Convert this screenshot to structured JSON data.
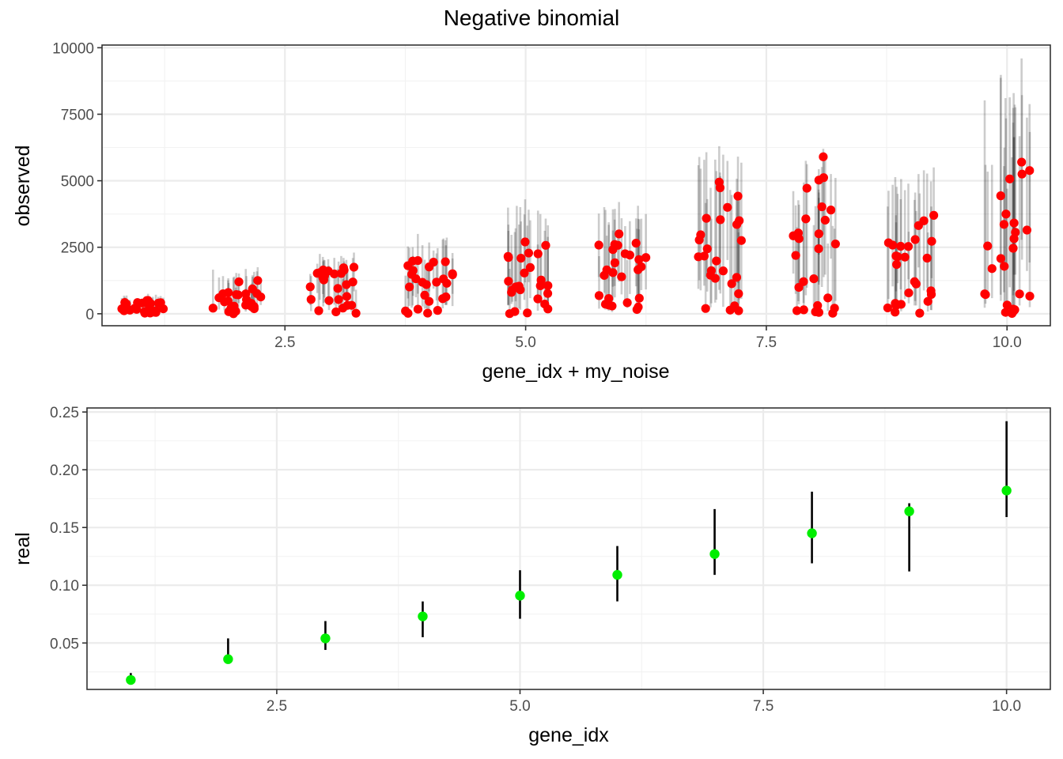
{
  "chart_data": [
    {
      "type": "scatter",
      "title": "Negative binomial",
      "xlabel": "gene_idx + my_noise",
      "ylabel": "observed",
      "xlim": [
        0.6,
        10.45
      ],
      "ylim": [
        -450,
        10100
      ],
      "x_ticks": [
        "2.5",
        "5.0",
        "7.5",
        "10.0"
      ],
      "x_tick_values": [
        2.5,
        5.0,
        7.5,
        10.0
      ],
      "y_ticks": [
        "0",
        "2500",
        "5000",
        "7500",
        "10000"
      ],
      "y_tick_values": [
        0,
        2500,
        5000,
        7500,
        10000
      ],
      "grid": true,
      "point_color": "#ff0000",
      "interval_color": "#000000",
      "groups": [
        {
          "gene_idx": 1,
          "point_max": 500,
          "interval_max": 750
        },
        {
          "gene_idx": 2,
          "point_max": 1250,
          "interval_max": 1750
        },
        {
          "gene_idx": 3,
          "point_max": 1750,
          "interval_max": 2300
        },
        {
          "gene_idx": 4,
          "point_max": 2000,
          "interval_max": 3000
        },
        {
          "gene_idx": 5,
          "point_max": 2700,
          "interval_max": 4300
        },
        {
          "gene_idx": 6,
          "point_max": 3000,
          "interval_max": 4200
        },
        {
          "gene_idx": 7,
          "point_max": 4950,
          "interval_max": 6300
        },
        {
          "gene_idx": 8,
          "point_max": 5900,
          "interval_max": 6200
        },
        {
          "gene_idx": 9,
          "point_max": 3700,
          "interval_max": 5500
        },
        {
          "gene_idx": 10,
          "point_max": 5700,
          "interval_max": 9600
        }
      ]
    },
    {
      "type": "scatter",
      "xlabel": "gene_idx",
      "ylabel": "real",
      "xlim": [
        0.55,
        10.45
      ],
      "ylim": [
        0.0098,
        0.2535
      ],
      "x_ticks": [
        "2.5",
        "5.0",
        "7.5",
        "10.0"
      ],
      "x_tick_values": [
        2.5,
        5.0,
        7.5,
        10.0
      ],
      "y_ticks": [
        "0.05",
        "0.10",
        "0.15",
        "0.20",
        "0.25"
      ],
      "y_tick_values": [
        0.05,
        0.1,
        0.15,
        0.2,
        0.25
      ],
      "grid": true,
      "point_color": "#00ee00",
      "interval_color": "#000000",
      "points": [
        {
          "x": 1,
          "y": 0.018,
          "lower": 0.016,
          "upper": 0.024
        },
        {
          "x": 2,
          "y": 0.036,
          "lower": 0.035,
          "upper": 0.054
        },
        {
          "x": 3,
          "y": 0.054,
          "lower": 0.044,
          "upper": 0.069
        },
        {
          "x": 4,
          "y": 0.073,
          "lower": 0.055,
          "upper": 0.086
        },
        {
          "x": 5,
          "y": 0.091,
          "lower": 0.071,
          "upper": 0.113
        },
        {
          "x": 6,
          "y": 0.109,
          "lower": 0.086,
          "upper": 0.134
        },
        {
          "x": 7,
          "y": 0.127,
          "lower": 0.109,
          "upper": 0.166
        },
        {
          "x": 8,
          "y": 0.145,
          "lower": 0.119,
          "upper": 0.181
        },
        {
          "x": 9,
          "y": 0.164,
          "lower": 0.112,
          "upper": 0.171
        },
        {
          "x": 10,
          "y": 0.182,
          "lower": 0.159,
          "upper": 0.242
        }
      ]
    }
  ]
}
